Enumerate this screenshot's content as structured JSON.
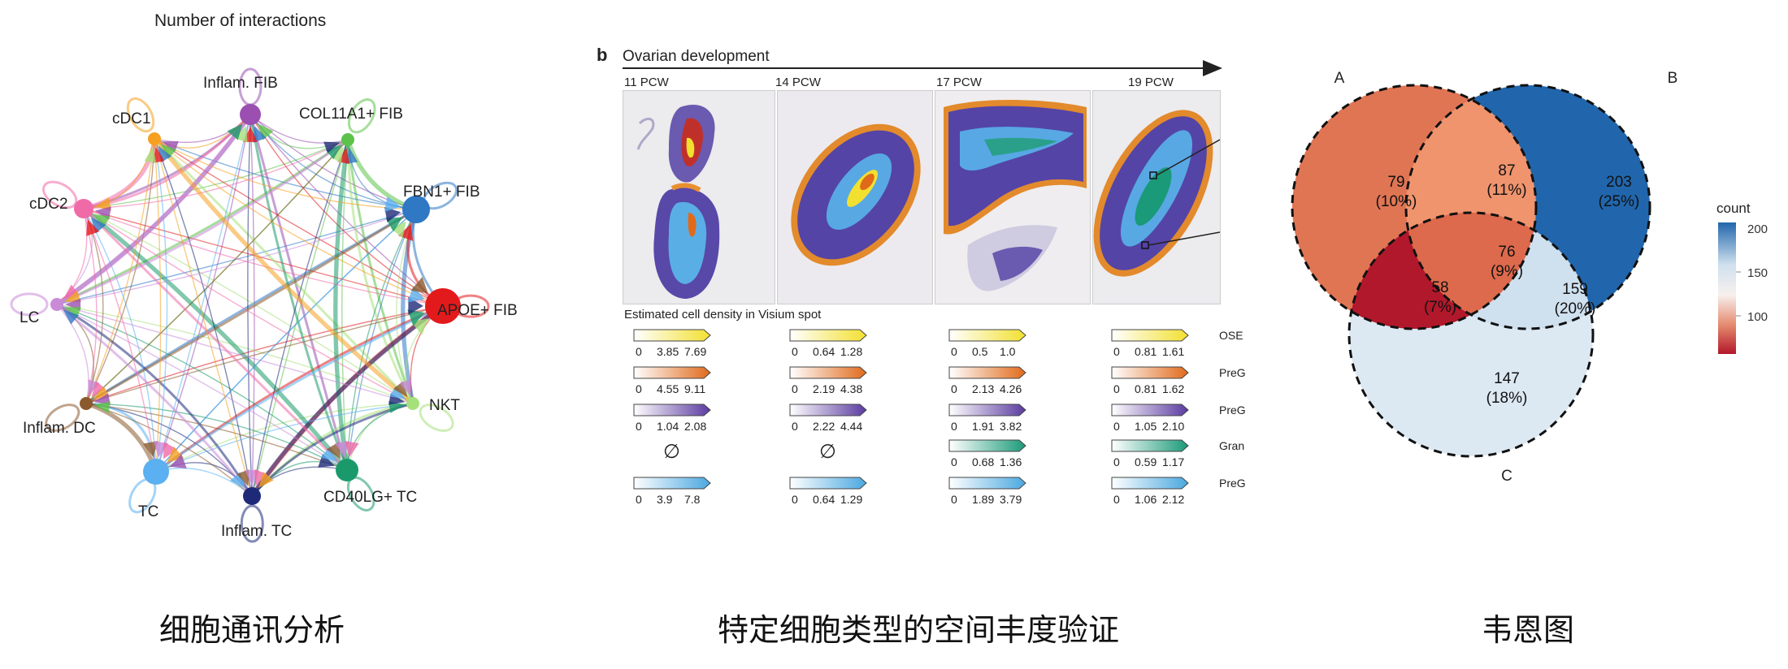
{
  "network": {
    "title": "Number of interactions",
    "caption": "细胞通讯分析",
    "nodes": [
      {
        "label": "Inflam. FIB",
        "color": "#9b4fb0"
      },
      {
        "label": "COL11A1+ FIB",
        "color": "#5cc24a"
      },
      {
        "label": "FBN1+ FIB",
        "color": "#2f78c4"
      },
      {
        "label": "APOE+ FIB",
        "color": "#e31a1c"
      },
      {
        "label": "NKT",
        "color": "#a6e07a"
      },
      {
        "label": "CD40LG+ TC",
        "color": "#1a9a6a"
      },
      {
        "label": "Inflam. TC",
        "color": "#1e2a78"
      },
      {
        "label": "TC",
        "color": "#5ab0f0"
      },
      {
        "label": "Inflam. DC",
        "color": "#8a5a2e"
      },
      {
        "label": "LC",
        "color": "#c98ad8"
      },
      {
        "label": "cDC2",
        "color": "#f06aa8"
      },
      {
        "label": "cDC1",
        "color": "#f5a020"
      }
    ]
  },
  "spatial": {
    "panel_letter": "b",
    "title": "Ovarian development",
    "timepoints": [
      "11 PCW",
      "14 PCW",
      "17 PCW",
      "19 PCW"
    ],
    "density_title": "Estimated cell density in Visium spot",
    "row_labels": [
      "OSE",
      "PreG",
      "PreG",
      "Gran",
      "PreG"
    ],
    "scales": [
      [
        [
          "0",
          "3.85",
          "7.69"
        ],
        [
          "0",
          "4.55",
          "9.11"
        ],
        [
          "0",
          "1.04",
          "2.08"
        ],
        null,
        [
          "0",
          "3.9",
          "7.8"
        ]
      ],
      [
        [
          "0",
          "0.64",
          "1.28"
        ],
        [
          "0",
          "2.19",
          "4.38"
        ],
        [
          "0",
          "2.22",
          "4.44"
        ],
        null,
        [
          "0",
          "0.64",
          "1.29"
        ]
      ],
      [
        [
          "0",
          "0.5",
          "1.0"
        ],
        [
          "0",
          "2.13",
          "4.26"
        ],
        [
          "0",
          "1.91",
          "3.82"
        ],
        [
          "0",
          "0.68",
          "1.36"
        ],
        [
          "0",
          "1.89",
          "3.79"
        ]
      ],
      [
        [
          "0",
          "0.81",
          "1.61"
        ],
        [
          "0",
          "0.81",
          "1.62"
        ],
        [
          "0",
          "1.05",
          "2.10"
        ],
        [
          "0",
          "0.59",
          "1.17"
        ],
        [
          "0",
          "1.06",
          "2.12"
        ]
      ]
    ],
    "empty_symbol": "∅",
    "colors": [
      "#f2e030",
      "#e06a1a",
      "#5a3aa0",
      "#1a9a78",
      "#4aa8e0"
    ],
    "caption": "特定细胞类型的空间丰度验证"
  },
  "venn": {
    "set_labels": {
      "a": "A",
      "b": "B",
      "c": "C"
    },
    "regions": {
      "a_only": {
        "count": "79",
        "pct": "(10%)"
      },
      "ab": {
        "count": "87",
        "pct": "(11%)"
      },
      "b_only": {
        "count": "203",
        "pct": "(25%)"
      },
      "abc": {
        "count": "76",
        "pct": "(9%)"
      },
      "ac": {
        "count": "58",
        "pct": "(7%)"
      },
      "bc": {
        "count": "159",
        "pct": "(20%)"
      },
      "c_only": {
        "count": "147",
        "pct": "(18%)"
      }
    },
    "legend": {
      "title": "count",
      "ticks": [
        "200",
        "150",
        "100"
      ]
    },
    "colors": {
      "a_only": "#e07554",
      "ab": "#f0946e",
      "b_only": "#2166ac",
      "abc": "#dd6a4c",
      "ac": "#b2182b",
      "bc": "#cfe0ee",
      "c_only": "#dce9f3"
    },
    "caption": "韦恩图"
  }
}
